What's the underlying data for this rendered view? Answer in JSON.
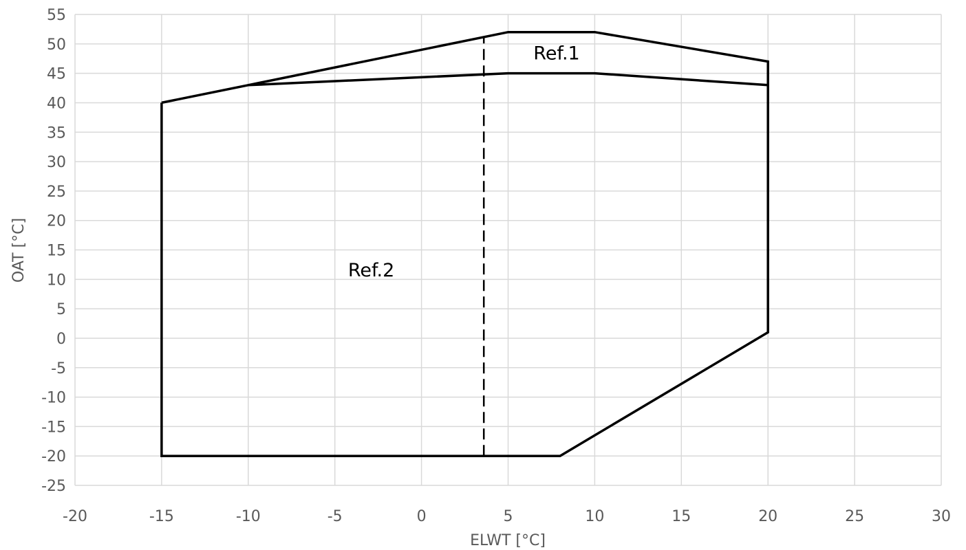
{
  "chart_data": {
    "type": "line",
    "title": "",
    "xlabel": "ELWT [°C]",
    "ylabel": "OAT [°C]",
    "xlim": [
      -20,
      30
    ],
    "ylim": [
      -25,
      55
    ],
    "xticks": [
      -20,
      -15,
      -10,
      -5,
      0,
      5,
      10,
      15,
      20,
      25,
      30
    ],
    "yticks": [
      -25,
      -20,
      -15,
      -10,
      -5,
      0,
      5,
      10,
      15,
      20,
      25,
      30,
      35,
      40,
      45,
      50,
      55
    ],
    "xtick_labels": [
      "-20",
      "-15",
      "-10",
      "-5",
      "0",
      "5",
      "10",
      "15",
      "20",
      "25",
      "30"
    ],
    "ytick_labels": [
      "-25",
      "-20",
      "-15",
      "-10",
      "-5",
      "0",
      "5",
      "10",
      "15",
      "20",
      "25",
      "30",
      "35",
      "40",
      "45",
      "50",
      "55"
    ],
    "grid": true,
    "series": [
      {
        "style": "solid",
        "color": "#000000",
        "x": [
          -15,
          -15,
          8,
          20,
          20,
          10,
          5,
          -10,
          -15
        ],
        "y": [
          40,
          -20,
          -20,
          1,
          47,
          52,
          52,
          43,
          40
        ]
      },
      {
        "style": "solid",
        "color": "#000000",
        "x": [
          -10,
          5,
          10,
          20
        ],
        "y": [
          43,
          45,
          45,
          43
        ]
      },
      {
        "style": "dashed",
        "color": "#000000",
        "x": [
          3.6,
          3.6
        ],
        "y": [
          -20,
          51.2
        ]
      }
    ],
    "annotations": [
      {
        "text": "Ref.1",
        "x": 7.8,
        "y": 48.5
      },
      {
        "text": "Ref.2",
        "x": -2.9,
        "y": 11.7
      }
    ]
  }
}
